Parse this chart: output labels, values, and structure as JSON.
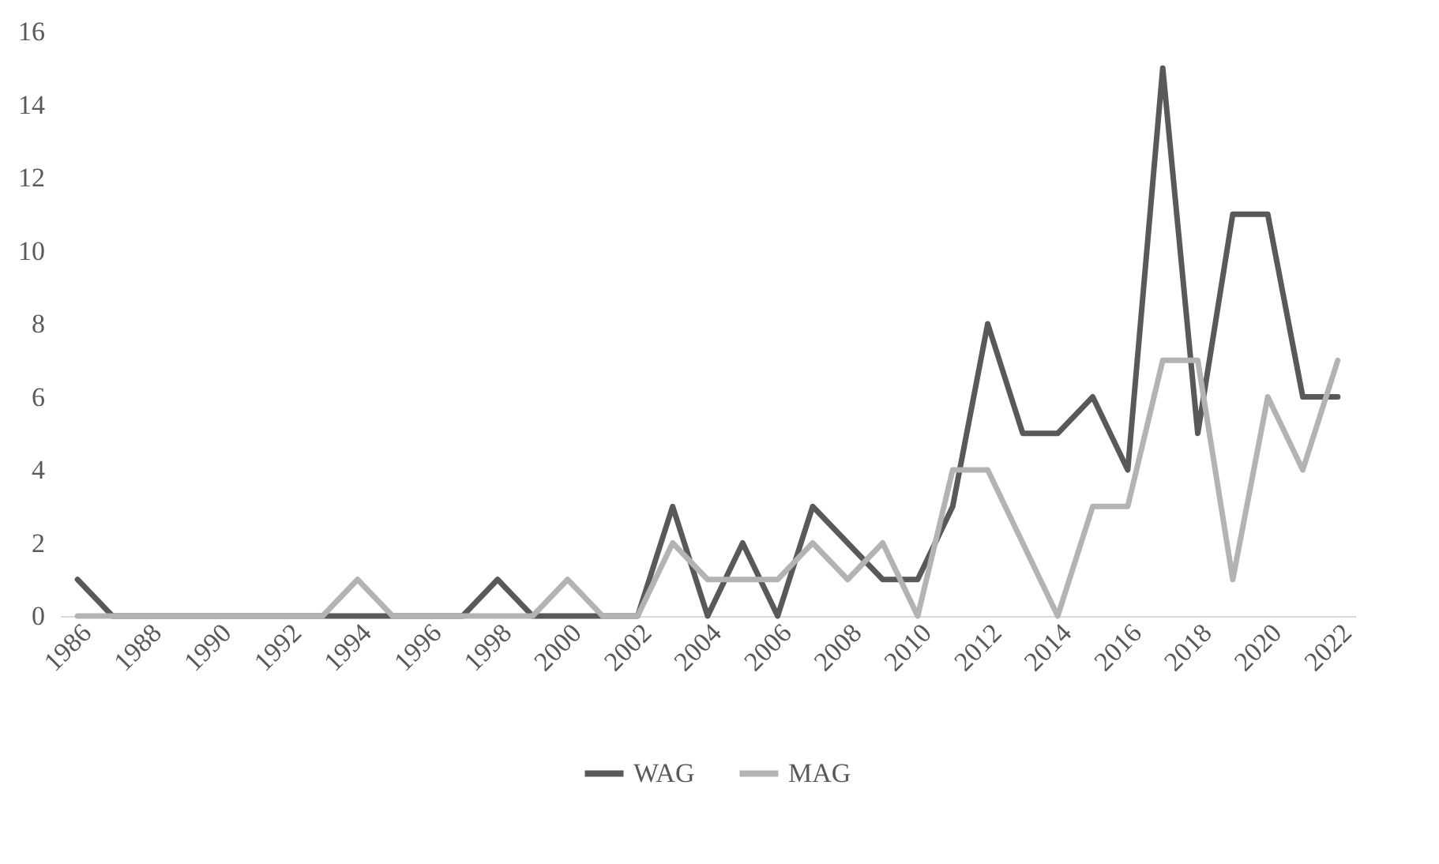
{
  "chart_data": {
    "type": "line",
    "categories": [
      "1986",
      null,
      "1988",
      null,
      "1990",
      null,
      "1992",
      null,
      "1994",
      null,
      "1996",
      null,
      "1998",
      null,
      "2000",
      null,
      "2002",
      null,
      "2004",
      null,
      "2006",
      null,
      "2008",
      null,
      "2010",
      null,
      "2012",
      null,
      "2014",
      null,
      "2016",
      null,
      "2018",
      null,
      "2020",
      null,
      "2022"
    ],
    "series": [
      {
        "name": "WAG",
        "color": "#595959",
        "values": [
          1,
          0,
          0,
          0,
          0,
          0,
          0,
          0,
          0,
          0,
          0,
          0,
          1,
          0,
          0,
          0,
          0,
          3,
          0,
          2,
          0,
          3,
          2,
          1,
          1,
          3,
          8,
          5,
          5,
          6,
          4,
          15,
          5,
          11,
          11,
          6,
          6
        ]
      },
      {
        "name": "MAG",
        "color": "#b3b3b3",
        "values": [
          0,
          0,
          0,
          0,
          0,
          0,
          0,
          0,
          1,
          0,
          0,
          0,
          0,
          0,
          1,
          0,
          0,
          2,
          1,
          1,
          1,
          2,
          1,
          2,
          0,
          4,
          4,
          2,
          0,
          3,
          3,
          7,
          7,
          1,
          6,
          4,
          7
        ]
      }
    ],
    "ylim": [
      0,
      16
    ],
    "yticks": [
      0,
      2,
      4,
      6,
      8,
      10,
      12,
      14,
      16
    ],
    "grid": false,
    "legend": "bottom",
    "marker": "none",
    "line_style": "solid"
  }
}
